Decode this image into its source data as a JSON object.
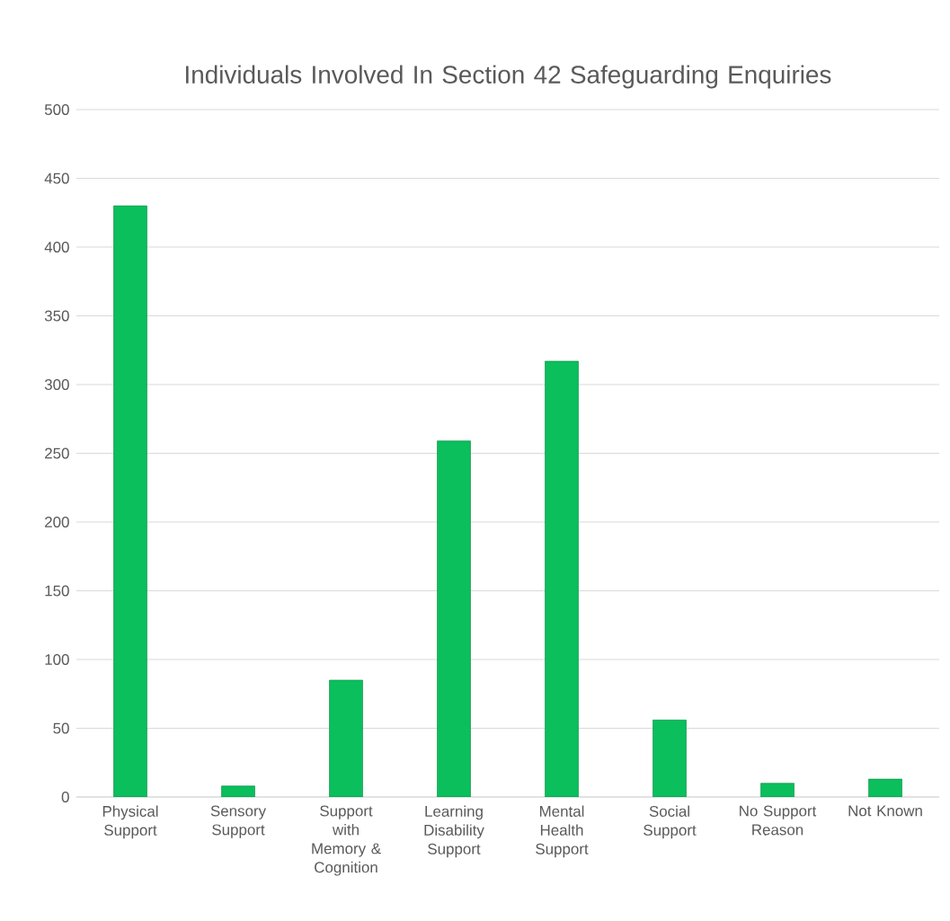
{
  "chart_data": {
    "type": "bar",
    "title": "Individuals Involved In Section 42 Safeguarding Enquiries",
    "categories": [
      "Physical Support",
      "Sensory Support",
      "Support with Memory & Cognition",
      "Learning Disability Support",
      "Mental Health Support",
      "Social Support",
      "No Support Reason",
      "Not Known"
    ],
    "values": [
      430,
      8,
      85,
      259,
      317,
      56,
      10,
      13
    ],
    "color": "#0abf5c",
    "ylim": [
      0,
      500
    ],
    "yticks": [
      0,
      50,
      100,
      150,
      200,
      250,
      300,
      350,
      400,
      450,
      500
    ],
    "grid": "y"
  }
}
